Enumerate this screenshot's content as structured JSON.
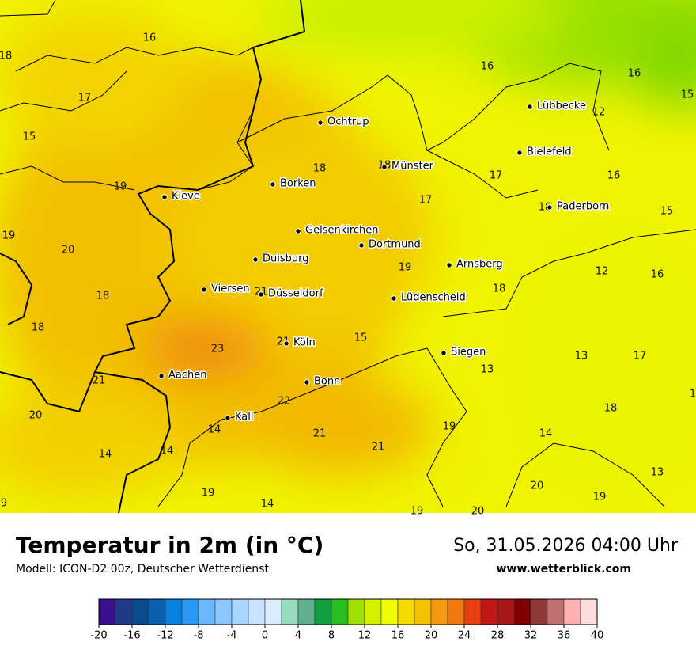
{
  "header": {
    "title": "Temperatur in 2m (in °C)",
    "model": "Modell: ICON-D2 00z, Deutscher Wetterdienst",
    "date": "So, 31.05.2026 04:00 Uhr",
    "site": "www.wetterblick.com"
  },
  "cities": [
    "Ochtrup",
    "Münster",
    "Lübbecke",
    "Bielefeld",
    "Paderborn",
    "Borken",
    "Kleve",
    "Gelsenkirchen",
    "Dortmund",
    "Duisburg",
    "Arnsberg",
    "Viersen",
    "Düsseldorf",
    "Lüdenscheid",
    "Köln",
    "Siegen",
    "Aachen",
    "Bonn",
    "Kall"
  ],
  "temperatures": [
    16,
    18,
    17,
    15,
    19,
    19,
    20,
    18,
    18,
    23,
    21,
    20,
    14,
    14,
    14,
    19,
    14,
    22,
    21,
    21,
    19,
    19,
    20,
    14,
    20,
    19,
    13,
    18,
    1,
    9,
    13,
    13,
    17,
    15,
    21,
    21,
    18,
    19,
    12,
    16,
    15,
    18,
    16,
    17,
    17,
    18,
    18,
    12,
    15,
    16,
    16
  ],
  "legend": {
    "lim": [
      -20,
      40
    ],
    "ticks": [
      -20,
      -16,
      -12,
      -8,
      -4,
      0,
      4,
      8,
      12,
      16,
      20,
      24,
      28,
      32,
      36,
      40
    ],
    "colors": [
      "#3a0f8c",
      "#1f3a88",
      "#0b4a8c",
      "#0a60b0",
      "#0a80e0",
      "#2a98f5",
      "#6cb8ff",
      "#8cc8ff",
      "#a8d6ff",
      "#c8e2ff",
      "#dcecff",
      "#98dcc0",
      "#60b090",
      "#10a040",
      "#28c020",
      "#a0e000",
      "#d2f000",
      "#f0ff00",
      "#f5dc00",
      "#f5c000",
      "#f59a10",
      "#f07a10",
      "#e84010",
      "#c01818",
      "#a81818",
      "#800000",
      "#903838",
      "#c07070",
      "#ffb0b0",
      "#ffdcdc"
    ]
  }
}
